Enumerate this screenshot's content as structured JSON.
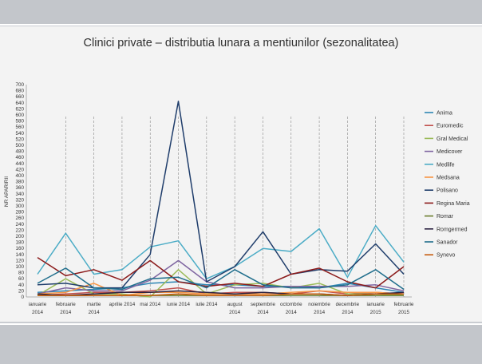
{
  "chart_data": {
    "type": "line",
    "title": "Clinici private – distributia lunara a mentiunilor (sezonalitatea)",
    "ylabel": "NR APARIRII",
    "xlabel": "",
    "ylim": [
      0,
      700
    ],
    "ytick_step": 20,
    "grid": false,
    "legend": "right",
    "categories": [
      [
        "ianuarie",
        "2014"
      ],
      [
        "februarie",
        "2014"
      ],
      [
        "martie",
        "2014"
      ],
      [
        "aprilie 2014"
      ],
      [
        "mai 2014"
      ],
      [
        "iunie 2014"
      ],
      [
        "iulie 2014"
      ],
      [
        "august",
        "2014"
      ],
      [
        "septembrie",
        "2014"
      ],
      [
        "octombrie",
        "2014"
      ],
      [
        "noiembrie",
        "2014"
      ],
      [
        "decembrie",
        "2014"
      ],
      [
        "ianuarie",
        "2015"
      ],
      [
        "februarie",
        "2015"
      ]
    ],
    "series": [
      {
        "name": "Anima",
        "color": "#2e86b4",
        "values": [
          15,
          20,
          25,
          30,
          45,
          50,
          40,
          40,
          35,
          35,
          30,
          45,
          30,
          15
        ]
      },
      {
        "name": "Euromedic",
        "color": "#c0504d",
        "values": [
          5,
          10,
          15,
          15,
          20,
          30,
          10,
          15,
          15,
          10,
          20,
          10,
          15,
          10
        ]
      },
      {
        "name": "Gral Medical",
        "color": "#9bbb59",
        "values": [
          5,
          60,
          10,
          10,
          0,
          90,
          10,
          40,
          45,
          30,
          45,
          10,
          10,
          5
        ]
      },
      {
        "name": "Medicover",
        "color": "#7e64a0",
        "values": [
          10,
          30,
          20,
          20,
          55,
          120,
          50,
          30,
          30,
          35,
          35,
          35,
          40,
          20
        ]
      },
      {
        "name": "Medlife",
        "color": "#4bacc6",
        "values": [
          75,
          210,
          75,
          90,
          165,
          185,
          60,
          100,
          160,
          150,
          225,
          65,
          235,
          115
        ]
      },
      {
        "name": "Medsana",
        "color": "#f79646",
        "values": [
          10,
          15,
          45,
          5,
          15,
          15,
          10,
          10,
          10,
          15,
          20,
          15,
          15,
          10
        ]
      },
      {
        "name": "Polisano",
        "color": "#1f3d6b",
        "values": [
          40,
          45,
          30,
          30,
          140,
          645,
          50,
          100,
          215,
          75,
          90,
          85,
          175,
          75
        ]
      },
      {
        "name": "Regina Maria",
        "color": "#8b1a1a",
        "values": [
          130,
          70,
          90,
          55,
          120,
          50,
          35,
          45,
          35,
          75,
          95,
          50,
          30,
          100
        ]
      },
      {
        "name": "Romar",
        "color": "#6b7d2e",
        "values": [
          5,
          5,
          5,
          5,
          5,
          5,
          5,
          5,
          5,
          5,
          5,
          5,
          5,
          5
        ]
      },
      {
        "name": "Romgermed",
        "color": "#2b2140",
        "values": [
          10,
          5,
          10,
          15,
          15,
          20,
          15,
          10,
          15,
          10,
          10,
          5,
          10,
          15
        ]
      },
      {
        "name": "Sanador",
        "color": "#1f6e8c",
        "values": [
          45,
          95,
          30,
          25,
          60,
          65,
          30,
          90,
          40,
          30,
          30,
          40,
          90,
          25
        ]
      },
      {
        "name": "Synevo",
        "color": "#c65c0e",
        "values": [
          5,
          5,
          5,
          5,
          5,
          10,
          5,
          5,
          5,
          10,
          10,
          5,
          10,
          10
        ]
      }
    ]
  }
}
